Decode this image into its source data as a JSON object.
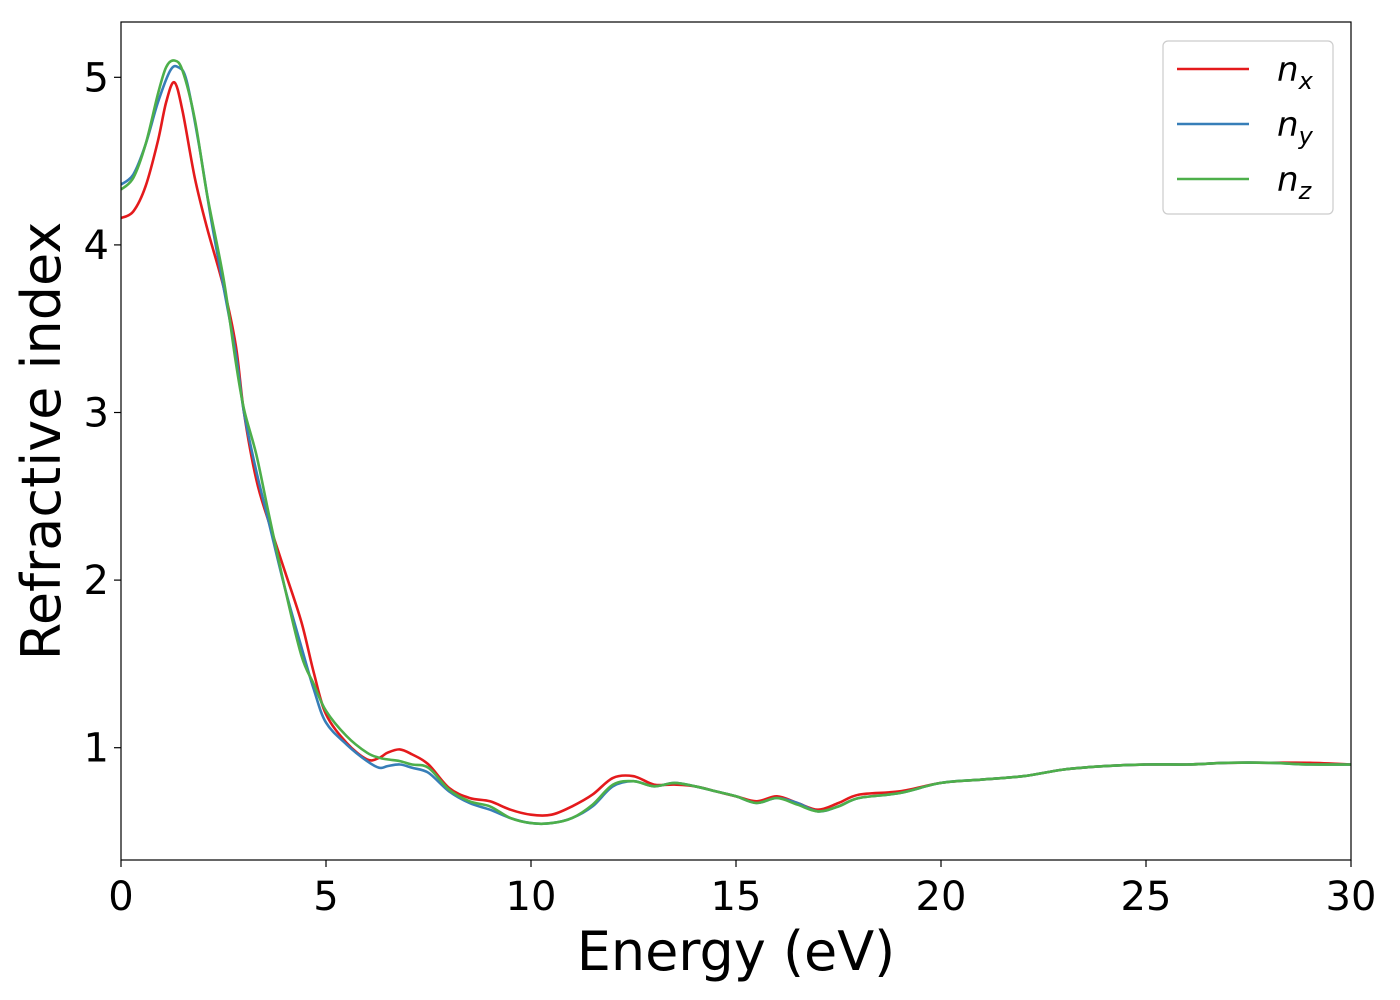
{
  "chart_data": {
    "type": "line",
    "xlabel": "Energy (eV)",
    "ylabel": "Refractive index",
    "xlim": [
      0,
      30
    ],
    "ylim": [
      0.33,
      5.33
    ],
    "xticks": [
      0,
      5,
      10,
      15,
      20,
      25,
      30
    ],
    "yticks": [
      1,
      2,
      3,
      4,
      5
    ],
    "grid": false,
    "legend_position": "top-right",
    "series": [
      {
        "name": "n",
        "subscript": "x",
        "color": "#e41a1c",
        "x": [
          0,
          0.3,
          0.6,
          0.9,
          1.1,
          1.3,
          1.5,
          1.8,
          2.1,
          2.5,
          2.8,
          3.0,
          3.3,
          3.6,
          4.0,
          4.4,
          4.7,
          5.0,
          5.5,
          6.0,
          6.3,
          6.5,
          6.8,
          7.1,
          7.5,
          8.0,
          8.5,
          9.0,
          9.5,
          10.0,
          10.5,
          11.0,
          11.5,
          12.0,
          12.5,
          13.0,
          13.5,
          14.0,
          14.5,
          15.0,
          15.5,
          16.0,
          16.5,
          17.0,
          17.5,
          18.0,
          19.0,
          20.0,
          21.0,
          22.0,
          23.0,
          24.0,
          25.0,
          26.0,
          27.0,
          28.0,
          29.0,
          30.0
        ],
        "y": [
          4.16,
          4.2,
          4.35,
          4.62,
          4.85,
          4.97,
          4.8,
          4.4,
          4.1,
          3.75,
          3.4,
          3.0,
          2.6,
          2.35,
          2.05,
          1.75,
          1.45,
          1.2,
          1.03,
          0.93,
          0.94,
          0.97,
          0.99,
          0.96,
          0.9,
          0.76,
          0.7,
          0.68,
          0.63,
          0.6,
          0.6,
          0.65,
          0.72,
          0.82,
          0.83,
          0.78,
          0.78,
          0.77,
          0.74,
          0.71,
          0.68,
          0.71,
          0.67,
          0.63,
          0.67,
          0.72,
          0.74,
          0.79,
          0.81,
          0.83,
          0.87,
          0.89,
          0.9,
          0.9,
          0.91,
          0.91,
          0.91,
          0.9
        ]
      },
      {
        "name": "n",
        "subscript": "y",
        "color": "#377eb8",
        "x": [
          0,
          0.3,
          0.6,
          0.9,
          1.2,
          1.4,
          1.6,
          1.9,
          2.2,
          2.5,
          2.8,
          3.0,
          3.3,
          3.6,
          4.0,
          4.4,
          4.7,
          5.0,
          5.5,
          6.0,
          6.3,
          6.5,
          6.8,
          7.1,
          7.5,
          8.0,
          8.5,
          9.0,
          9.5,
          10.0,
          10.5,
          11.0,
          11.5,
          12.0,
          12.5,
          13.0,
          13.5,
          14.0,
          14.5,
          15.0,
          15.5,
          16.0,
          16.5,
          17.0,
          17.5,
          18.0,
          19.0,
          20.0,
          21.0,
          22.0,
          23.0,
          24.0,
          25.0,
          26.0,
          27.0,
          28.0,
          29.0,
          30.0
        ],
        "y": [
          4.36,
          4.42,
          4.6,
          4.85,
          5.04,
          5.06,
          4.98,
          4.6,
          4.15,
          3.75,
          3.35,
          3.0,
          2.65,
          2.35,
          1.95,
          1.6,
          1.35,
          1.15,
          1.02,
          0.92,
          0.88,
          0.89,
          0.9,
          0.88,
          0.85,
          0.74,
          0.67,
          0.63,
          0.58,
          0.55,
          0.55,
          0.58,
          0.65,
          0.77,
          0.8,
          0.77,
          0.79,
          0.77,
          0.74,
          0.71,
          0.67,
          0.7,
          0.67,
          0.62,
          0.65,
          0.7,
          0.73,
          0.79,
          0.81,
          0.83,
          0.87,
          0.89,
          0.9,
          0.9,
          0.91,
          0.91,
          0.9,
          0.9
        ]
      },
      {
        "name": "n",
        "subscript": "z",
        "color": "#4daf4a",
        "x": [
          0,
          0.3,
          0.6,
          0.9,
          1.1,
          1.3,
          1.5,
          1.8,
          2.1,
          2.5,
          2.8,
          3.0,
          3.3,
          3.6,
          4.0,
          4.4,
          4.7,
          5.0,
          5.5,
          6.0,
          6.3,
          6.5,
          6.8,
          7.1,
          7.5,
          8.0,
          8.5,
          9.0,
          9.5,
          10.0,
          10.5,
          11.0,
          11.5,
          12.0,
          12.5,
          13.0,
          13.5,
          14.0,
          14.5,
          15.0,
          15.5,
          16.0,
          16.5,
          17.0,
          17.5,
          18.0,
          19.0,
          20.0,
          21.0,
          22.0,
          23.0,
          24.0,
          25.0,
          26.0,
          27.0,
          28.0,
          29.0,
          30.0
        ],
        "y": [
          4.33,
          4.4,
          4.6,
          4.9,
          5.06,
          5.1,
          5.04,
          4.75,
          4.3,
          3.8,
          3.3,
          3.02,
          2.75,
          2.4,
          1.95,
          1.55,
          1.38,
          1.22,
          1.07,
          0.97,
          0.94,
          0.93,
          0.92,
          0.9,
          0.88,
          0.75,
          0.68,
          0.65,
          0.58,
          0.55,
          0.55,
          0.58,
          0.66,
          0.78,
          0.8,
          0.77,
          0.79,
          0.77,
          0.74,
          0.71,
          0.67,
          0.7,
          0.66,
          0.62,
          0.65,
          0.7,
          0.73,
          0.79,
          0.81,
          0.83,
          0.87,
          0.89,
          0.9,
          0.9,
          0.91,
          0.91,
          0.9,
          0.9
        ]
      }
    ]
  }
}
